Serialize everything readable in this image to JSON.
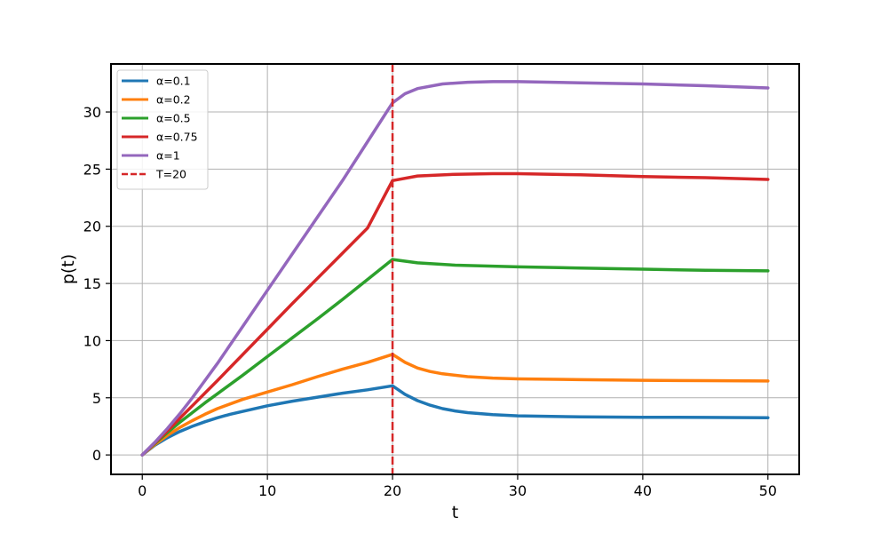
{
  "chart_data": {
    "type": "line",
    "xlabel": "t",
    "ylabel": "p(t)",
    "xlim": [
      -2.5,
      52.5
    ],
    "ylim": [
      -1.7,
      34.2
    ],
    "xticks": [
      0,
      10,
      20,
      30,
      40,
      50
    ],
    "yticks": [
      0,
      5,
      10,
      15,
      20,
      25,
      30
    ],
    "grid": true,
    "legend_position": "top-left",
    "series": [
      {
        "name": "α=0.1",
        "color": "#1f77b4",
        "x": [
          0,
          1,
          2,
          3,
          4,
          5,
          6,
          7,
          8,
          10,
          12,
          14,
          16,
          18,
          20,
          21,
          22,
          23,
          24,
          25,
          26,
          28,
          30,
          35,
          40,
          45,
          50
        ],
        "y": [
          0,
          0.85,
          1.5,
          2.05,
          2.5,
          2.9,
          3.25,
          3.55,
          3.8,
          4.3,
          4.7,
          5.05,
          5.4,
          5.7,
          6.05,
          5.3,
          4.75,
          4.35,
          4.05,
          3.85,
          3.7,
          3.52,
          3.42,
          3.33,
          3.3,
          3.28,
          3.25
        ]
      },
      {
        "name": "α=0.2",
        "color": "#ff7f0e",
        "x": [
          0,
          1,
          2,
          3,
          4,
          5,
          6,
          8,
          10,
          12,
          14,
          16,
          18,
          20,
          21,
          22,
          23,
          24,
          26,
          28,
          30,
          35,
          40,
          45,
          50
        ],
        "y": [
          0,
          0.9,
          1.7,
          2.4,
          3.0,
          3.55,
          4.05,
          4.85,
          5.5,
          6.15,
          6.85,
          7.5,
          8.1,
          8.8,
          8.1,
          7.6,
          7.3,
          7.1,
          6.85,
          6.72,
          6.65,
          6.58,
          6.53,
          6.5,
          6.47
        ]
      },
      {
        "name": "α=0.5",
        "color": "#2ca02c",
        "x": [
          0,
          1,
          2,
          3,
          4,
          5,
          6,
          8,
          10,
          12,
          14,
          16,
          18,
          20,
          22,
          25,
          30,
          35,
          40,
          45,
          50
        ],
        "y": [
          0,
          1.0,
          1.95,
          2.85,
          3.7,
          4.55,
          5.35,
          6.95,
          8.6,
          10.25,
          11.9,
          13.6,
          15.35,
          17.1,
          16.8,
          16.6,
          16.45,
          16.35,
          16.25,
          16.15,
          16.1
        ]
      },
      {
        "name": "α=0.75",
        "color": "#d62728",
        "x": [
          0,
          1,
          2,
          3,
          4,
          5,
          6,
          8,
          10,
          12,
          14,
          16,
          18,
          20,
          22,
          25,
          28,
          30,
          35,
          40,
          45,
          50
        ],
        "y": [
          0,
          1.05,
          2.1,
          3.2,
          4.3,
          5.4,
          6.5,
          8.75,
          11.0,
          13.25,
          15.45,
          17.65,
          19.85,
          24.0,
          24.4,
          24.55,
          24.6,
          24.6,
          24.5,
          24.35,
          24.25,
          24.1
        ]
      },
      {
        "name": "α=1",
        "color": "#9467bd",
        "x": [
          0,
          1,
          2,
          3,
          4,
          5,
          6,
          8,
          10,
          12,
          14,
          16,
          18,
          20,
          21,
          22,
          24,
          26,
          28,
          30,
          35,
          40,
          45,
          50
        ],
        "y": [
          0,
          1.1,
          2.3,
          3.6,
          5.0,
          6.5,
          8.0,
          11.2,
          14.4,
          17.6,
          20.8,
          24.0,
          27.4,
          30.8,
          31.6,
          32.05,
          32.45,
          32.6,
          32.65,
          32.65,
          32.55,
          32.45,
          32.3,
          32.1
        ]
      }
    ],
    "vline": {
      "name": "T=20",
      "x": 20,
      "color": "#d62728",
      "style": "dashed"
    }
  }
}
